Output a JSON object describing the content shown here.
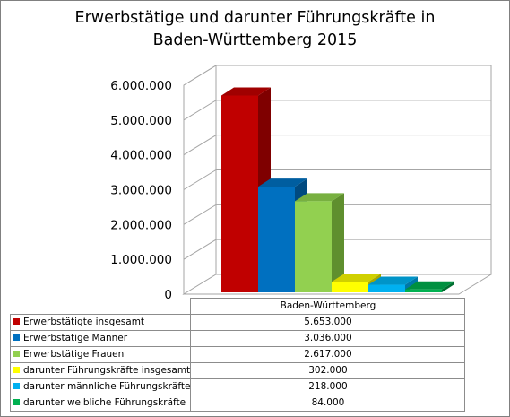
{
  "chart_data": {
    "type": "bar",
    "title_line1": "Erwerbstätige und darunter Führungskräfte in",
    "title_line2": "Baden-Württemberg 2015",
    "categories": [
      "Baden-Württemberg"
    ],
    "ylim": [
      0,
      6000000
    ],
    "yticks": [
      "0",
      "1.000.000",
      "2.000.000",
      "3.000.000",
      "4.000.000",
      "5.000.000",
      "6.000.000"
    ],
    "series": [
      {
        "name": "Erwerbstätigte insgesamt",
        "values": [
          5653000
        ],
        "label": "5.653.000",
        "color": "#c00000",
        "side": "#7f0000",
        "top": "#a00000"
      },
      {
        "name": "Erwerbstätige Männer",
        "values": [
          3036000
        ],
        "label": "3.036.000",
        "color": "#0070c0",
        "side": "#004a80",
        "top": "#005ea0"
      },
      {
        "name": "Erwerbstätige Frauen",
        "values": [
          2617000
        ],
        "label": "2.617.000",
        "color": "#92d050",
        "side": "#5f8f2e",
        "top": "#78b040"
      },
      {
        "name": "darunter Führungskräfte insgesamt",
        "values": [
          302000
        ],
        "label": "302.000",
        "color": "#ffff00",
        "side": "#a8a800",
        "top": "#d0d000"
      },
      {
        "name": "darunter männliche Führungskräfte",
        "values": [
          218000
        ],
        "label": "218.000",
        "color": "#00b0f0",
        "side": "#0078a8",
        "top": "#0094c8"
      },
      {
        "name": "darunter weibliche Führungskräfte",
        "values": [
          84000
        ],
        "label": "84.000",
        "color": "#00b050",
        "side": "#006e30",
        "top": "#009040"
      }
    ],
    "grid": true,
    "legend": "table-below"
  }
}
